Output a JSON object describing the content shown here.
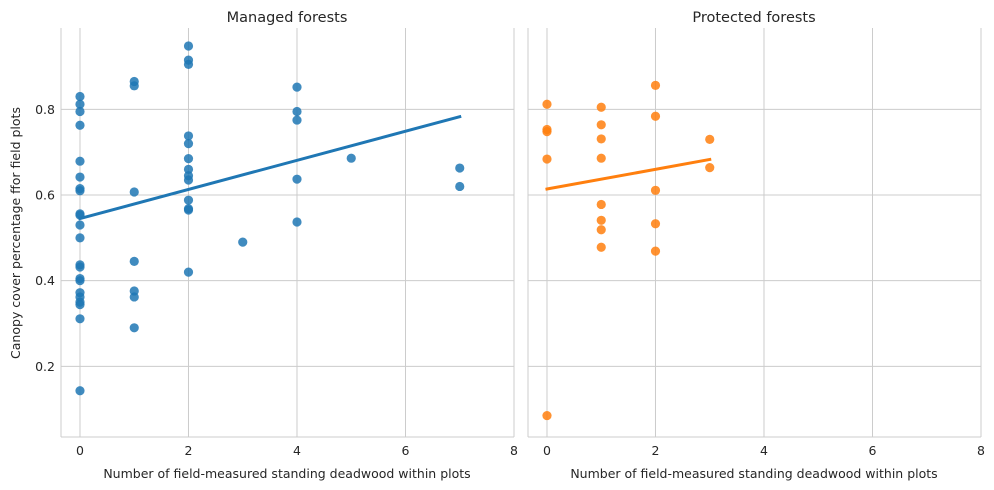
{
  "chart_data": [
    {
      "type": "scatter",
      "title": "Managed forests",
      "xlabel": "Number of field-measured standing deadwood within plots",
      "ylabel": "Canopy cover percentage ffor field plots",
      "xlim": [
        -0.35,
        8
      ],
      "ylim": [
        0.035,
        0.99
      ],
      "xticks": [
        0,
        2,
        4,
        6,
        8
      ],
      "yticks": [
        0.2,
        0.4,
        0.6,
        0.8
      ],
      "grid": true,
      "color": "#1f77b4",
      "points": [
        {
          "x": 0,
          "y": 0.83
        },
        {
          "x": 0,
          "y": 0.812
        },
        {
          "x": 0,
          "y": 0.795
        },
        {
          "x": 0,
          "y": 0.763
        },
        {
          "x": 0,
          "y": 0.679
        },
        {
          "x": 0,
          "y": 0.642
        },
        {
          "x": 0,
          "y": 0.615
        },
        {
          "x": 0,
          "y": 0.61
        },
        {
          "x": 0,
          "y": 0.556
        },
        {
          "x": 0,
          "y": 0.553
        },
        {
          "x": 0,
          "y": 0.53
        },
        {
          "x": 0,
          "y": 0.5
        },
        {
          "x": 0,
          "y": 0.437
        },
        {
          "x": 0,
          "y": 0.432
        },
        {
          "x": 0,
          "y": 0.405
        },
        {
          "x": 0,
          "y": 0.4
        },
        {
          "x": 0,
          "y": 0.372
        },
        {
          "x": 0,
          "y": 0.362
        },
        {
          "x": 0,
          "y": 0.35
        },
        {
          "x": 0,
          "y": 0.344
        },
        {
          "x": 0,
          "y": 0.311
        },
        {
          "x": 0,
          "y": 0.143
        },
        {
          "x": 1,
          "y": 0.865
        },
        {
          "x": 1,
          "y": 0.855
        },
        {
          "x": 1,
          "y": 0.607
        },
        {
          "x": 1,
          "y": 0.445
        },
        {
          "x": 1,
          "y": 0.376
        },
        {
          "x": 1,
          "y": 0.362
        },
        {
          "x": 1,
          "y": 0.29
        },
        {
          "x": 2,
          "y": 0.948
        },
        {
          "x": 2,
          "y": 0.915
        },
        {
          "x": 2,
          "y": 0.905
        },
        {
          "x": 2,
          "y": 0.738
        },
        {
          "x": 2,
          "y": 0.72
        },
        {
          "x": 2,
          "y": 0.685
        },
        {
          "x": 2,
          "y": 0.66
        },
        {
          "x": 2,
          "y": 0.645
        },
        {
          "x": 2,
          "y": 0.635
        },
        {
          "x": 2,
          "y": 0.588
        },
        {
          "x": 2,
          "y": 0.568
        },
        {
          "x": 2,
          "y": 0.565
        },
        {
          "x": 2,
          "y": 0.42
        },
        {
          "x": 3,
          "y": 0.49
        },
        {
          "x": 4,
          "y": 0.852
        },
        {
          "x": 4,
          "y": 0.795
        },
        {
          "x": 4,
          "y": 0.775
        },
        {
          "x": 4,
          "y": 0.637
        },
        {
          "x": 4,
          "y": 0.537
        },
        {
          "x": 5,
          "y": 0.686
        },
        {
          "x": 7,
          "y": 0.663
        },
        {
          "x": 7,
          "y": 0.62
        }
      ],
      "regression": {
        "x": [
          0,
          7
        ],
        "y": [
          0.545,
          0.783
        ]
      }
    },
    {
      "type": "scatter",
      "title": "Protected forests",
      "xlabel": "Number of field-measured standing deadwood within plots",
      "ylabel": "",
      "xlim": [
        -0.35,
        8
      ],
      "ylim": [
        0.035,
        0.99
      ],
      "xticks": [
        0,
        2,
        4,
        6,
        8
      ],
      "yticks": [
        0.2,
        0.4,
        0.6,
        0.8
      ],
      "grid": true,
      "color": "#ff7f0e",
      "points": [
        {
          "x": 0,
          "y": 0.812
        },
        {
          "x": 0,
          "y": 0.753
        },
        {
          "x": 0,
          "y": 0.748
        },
        {
          "x": 0,
          "y": 0.684
        },
        {
          "x": 0,
          "y": 0.085
        },
        {
          "x": 1,
          "y": 0.805
        },
        {
          "x": 1,
          "y": 0.764
        },
        {
          "x": 1,
          "y": 0.731
        },
        {
          "x": 1,
          "y": 0.686
        },
        {
          "x": 1,
          "y": 0.578
        },
        {
          "x": 1,
          "y": 0.541
        },
        {
          "x": 1,
          "y": 0.519
        },
        {
          "x": 1,
          "y": 0.478
        },
        {
          "x": 2,
          "y": 0.856
        },
        {
          "x": 2,
          "y": 0.784
        },
        {
          "x": 2,
          "y": 0.611
        },
        {
          "x": 2,
          "y": 0.533
        },
        {
          "x": 2,
          "y": 0.469
        },
        {
          "x": 3,
          "y": 0.73
        },
        {
          "x": 3,
          "y": 0.664
        }
      ],
      "regression": {
        "x": [
          0,
          3
        ],
        "y": [
          0.614,
          0.683
        ]
      }
    }
  ]
}
